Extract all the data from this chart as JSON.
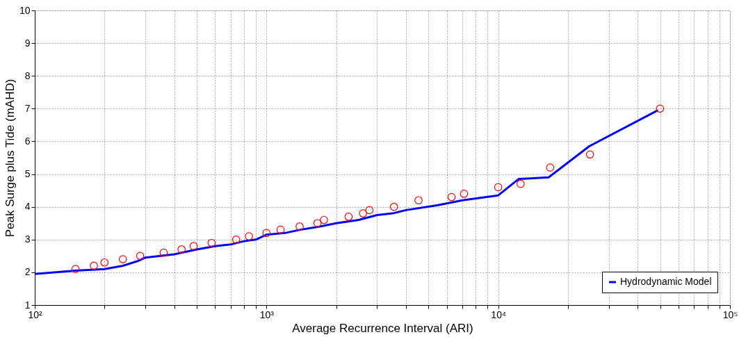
{
  "chart_data": {
    "type": "line",
    "xlabel": "Average Recurrence Interval (ARI)",
    "ylabel": "Peak Surge plus Tide (mAHD)",
    "log": "x",
    "grid": true,
    "legend": "bottom right",
    "xlim": [
      100,
      100000
    ],
    "ylim": [
      1,
      10
    ],
    "xticks": [
      {
        "value": 100,
        "label": "10²"
      },
      {
        "value": 200,
        "label": null
      },
      {
        "value": 300,
        "label": null
      },
      {
        "value": 400,
        "label": null
      },
      {
        "value": 500,
        "label": null
      },
      {
        "value": 600,
        "label": null
      },
      {
        "value": 700,
        "label": null
      },
      {
        "value": 800,
        "label": null
      },
      {
        "value": 900,
        "label": null
      },
      {
        "value": 1000,
        "label": "10³"
      },
      {
        "value": 2000,
        "label": null
      },
      {
        "value": 3000,
        "label": null
      },
      {
        "value": 4000,
        "label": null
      },
      {
        "value": 5000,
        "label": null
      },
      {
        "value": 6000,
        "label": null
      },
      {
        "value": 7000,
        "label": null
      },
      {
        "value": 8000,
        "label": null
      },
      {
        "value": 9000,
        "label": null
      },
      {
        "value": 10000,
        "label": "10⁴"
      },
      {
        "value": 20000,
        "label": null
      },
      {
        "value": 30000,
        "label": null
      },
      {
        "value": 40000,
        "label": null
      },
      {
        "value": 50000,
        "label": null
      },
      {
        "value": 60000,
        "label": null
      },
      {
        "value": 70000,
        "label": null
      },
      {
        "value": 80000,
        "label": null
      },
      {
        "value": 90000,
        "label": null
      },
      {
        "value": 100000,
        "label": "10⁵"
      }
    ],
    "yticks": [
      1,
      2,
      3,
      4,
      5,
      6,
      7,
      8,
      9,
      10
    ],
    "series": [
      {
        "name": "Hydrodynamic Model",
        "color": "#0000ff",
        "marker": "none",
        "line_style": "solid",
        "x": [
          100,
          150,
          200,
          240,
          280,
          300,
          400,
          500,
          600,
          700,
          800,
          900,
          1000,
          1200,
          1400,
          1700,
          2000,
          2500,
          3000,
          3500,
          4000,
          5500,
          7000,
          10000,
          12250,
          16500,
          24700,
          48900
        ],
        "values": [
          1.95,
          2.05,
          2.1,
          2.2,
          2.35,
          2.45,
          2.55,
          2.7,
          2.8,
          2.85,
          2.95,
          3.0,
          3.15,
          3.2,
          3.3,
          3.4,
          3.5,
          3.6,
          3.75,
          3.8,
          3.9,
          4.05,
          4.2,
          4.35,
          4.85,
          4.9,
          5.85,
          6.95
        ]
      },
      {
        "type": "scatter",
        "color": "#ff0000",
        "marker": "circle",
        "x": [
          150,
          180,
          200,
          240,
          285,
          360,
          430,
          485,
          580,
          740,
          840,
          1000,
          1150,
          1390,
          1660,
          1770,
          2260,
          2610,
          2780,
          3550,
          4530,
          6290,
          7120,
          10000,
          12490,
          16750,
          24890,
          49900
        ],
        "values": [
          2.1,
          2.2,
          2.3,
          2.4,
          2.5,
          2.6,
          2.7,
          2.8,
          2.9,
          3.0,
          3.1,
          3.2,
          3.3,
          3.4,
          3.5,
          3.6,
          3.7,
          3.8,
          3.9,
          4.0,
          4.2,
          4.3,
          4.4,
          4.6,
          4.7,
          5.2,
          5.6,
          7.0
        ]
      }
    ]
  }
}
